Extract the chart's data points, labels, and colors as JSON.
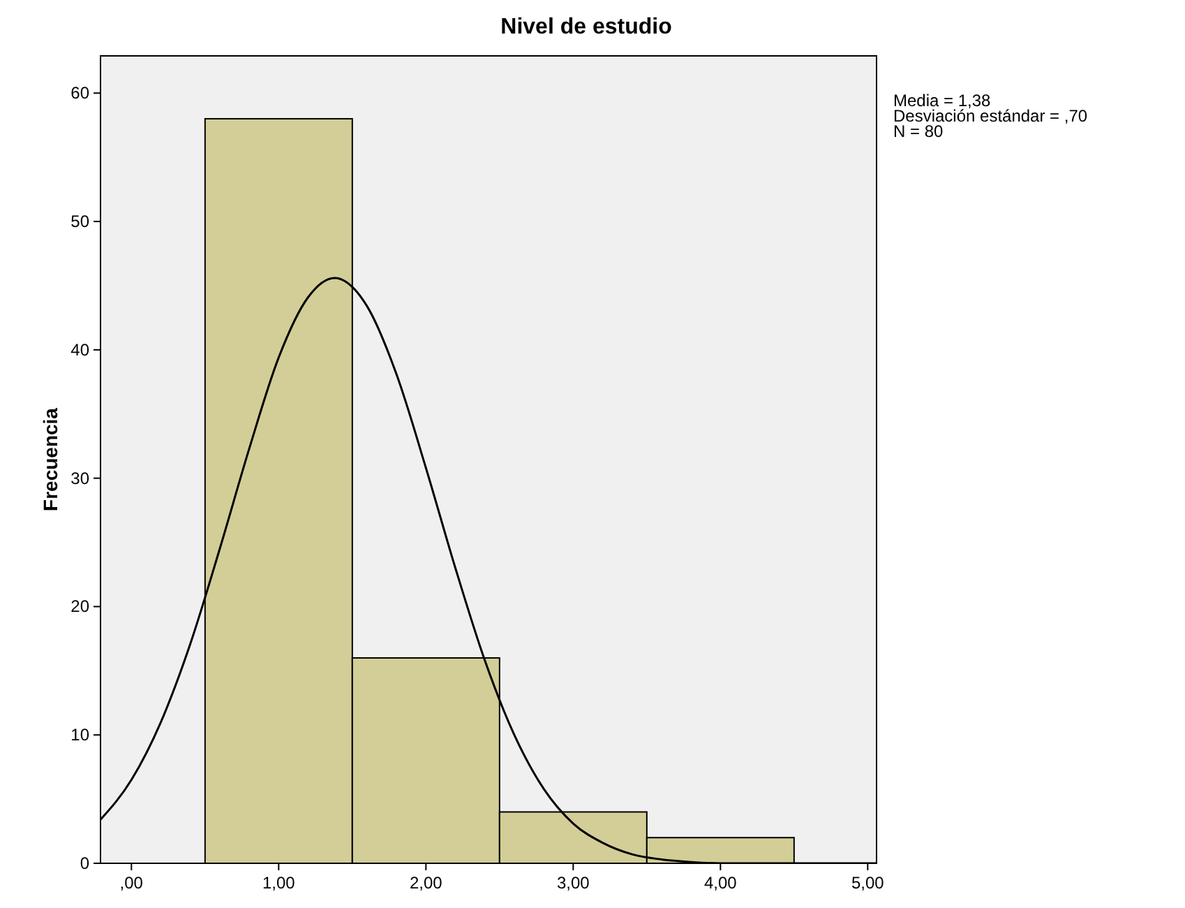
{
  "chart_data": {
    "type": "histogram",
    "title": "Nivel de estudio",
    "ylabel": "Frecuencia",
    "bins": [
      0.5,
      1.5,
      2.5,
      3.5,
      4.5
    ],
    "values": [
      58,
      16,
      4,
      2
    ],
    "color": "#d3ce97",
    "xlim": [
      -0.21,
      5.06
    ],
    "xticks": [
      {
        "value": 0,
        "label": ",00"
      },
      {
        "value": 1,
        "label": "1,00"
      },
      {
        "value": 2,
        "label": "2,00"
      },
      {
        "value": 3,
        "label": "3,00"
      },
      {
        "value": 4,
        "label": "4,00"
      },
      {
        "value": 5,
        "label": "5,00"
      }
    ],
    "ylim": [
      0,
      62.9
    ],
    "yticks": [
      0,
      10,
      20,
      30,
      40,
      50,
      60
    ],
    "grid": false,
    "series": [
      {
        "type": "line",
        "color": "#000000",
        "x": [
          -0.21,
          0,
          0.2,
          0.4,
          0.6,
          0.8,
          1.0,
          1.2,
          1.38,
          1.6,
          1.8,
          2.0,
          2.2,
          2.4,
          2.6,
          2.8,
          3.0,
          3.2,
          3.4,
          3.6,
          3.8,
          4.0,
          4.5,
          5.06
        ],
        "values": [
          3.4,
          6.5,
          11.0,
          17.1,
          24.5,
          32.3,
          39.4,
          44.1,
          45.6,
          43.4,
          38.1,
          30.8,
          23.0,
          15.8,
          10.0,
          5.8,
          3.1,
          1.6,
          0.7,
          0.3,
          0.1,
          0,
          0,
          0
        ]
      }
    ],
    "annotations": [
      "Media = 1,38",
      "Desviación estándar = ,70",
      "N = 80"
    ]
  }
}
